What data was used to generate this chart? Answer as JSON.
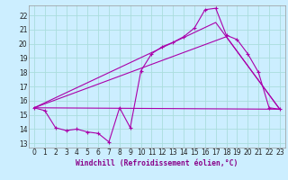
{
  "bg_color": "#cceeff",
  "grid_color": "#aadddd",
  "line_color": "#aa00aa",
  "xlabel": "Windchill (Refroidissement éolien,°C)",
  "xlim": [
    -0.5,
    23.5
  ],
  "ylim": [
    12.7,
    22.7
  ],
  "yticks": [
    13,
    14,
    15,
    16,
    17,
    18,
    19,
    20,
    21,
    22
  ],
  "xticks": [
    0,
    1,
    2,
    3,
    4,
    5,
    6,
    7,
    8,
    9,
    10,
    11,
    12,
    13,
    14,
    15,
    16,
    17,
    18,
    19,
    20,
    21,
    22,
    23
  ],
  "line1_x": [
    0,
    1,
    2,
    3,
    4,
    5,
    6,
    7,
    8,
    9,
    10,
    11,
    12,
    13,
    14,
    15,
    16,
    17,
    18,
    19,
    20,
    21,
    22,
    23
  ],
  "line1_y": [
    15.5,
    15.3,
    14.1,
    13.9,
    14.0,
    13.8,
    13.7,
    13.1,
    15.5,
    14.1,
    18.1,
    19.3,
    19.8,
    20.1,
    20.5,
    21.1,
    22.4,
    22.5,
    20.6,
    20.3,
    19.3,
    18.0,
    15.5,
    15.4
  ],
  "line2_x": [
    0,
    23
  ],
  "line2_y": [
    15.5,
    15.4
  ],
  "line3_x": [
    0,
    17,
    23
  ],
  "line3_y": [
    15.5,
    21.5,
    15.4
  ],
  "line4_x": [
    0,
    18,
    23
  ],
  "line4_y": [
    15.5,
    20.5,
    15.4
  ],
  "tick_fontsize": 5.5,
  "xlabel_fontsize": 5.8
}
